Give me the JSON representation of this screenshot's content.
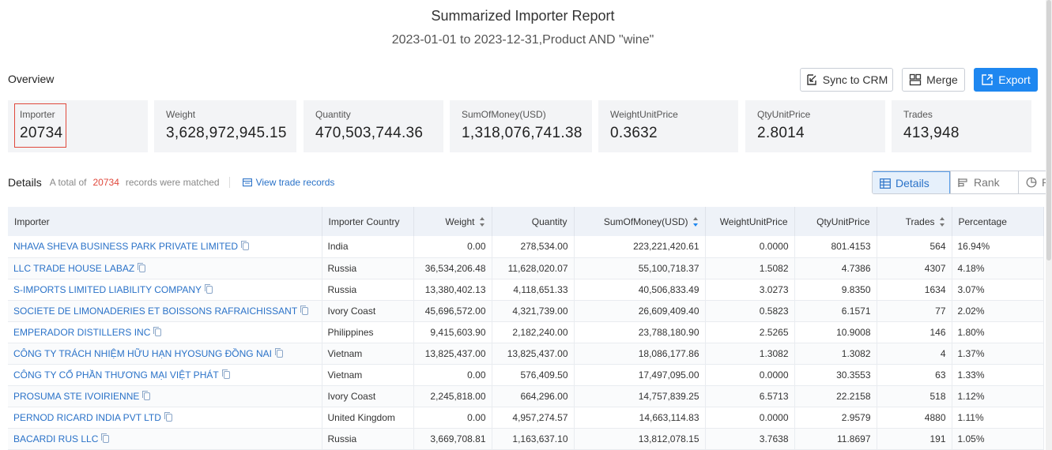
{
  "header": {
    "title": "Summarized Importer Report",
    "subtitle": "2023-01-01 to 2023-12-31,Product AND \"wine\""
  },
  "overview": {
    "label": "Overview",
    "buttons": {
      "sync": "Sync to CRM",
      "merge": "Merge",
      "export": "Export"
    },
    "stats": [
      {
        "label": "Importer",
        "value": "20734"
      },
      {
        "label": "Weight",
        "value": "3,628,972,945.15"
      },
      {
        "label": "Quantity",
        "value": "470,503,744.36"
      },
      {
        "label": "SumOfMoney(USD)",
        "value": "1,318,076,741.38"
      },
      {
        "label": "WeightUnitPrice",
        "value": "0.3632"
      },
      {
        "label": "QtyUnitPrice",
        "value": "2.8014"
      },
      {
        "label": "Trades",
        "value": "413,948"
      }
    ]
  },
  "details": {
    "title": "Details",
    "total_prefix": "A total of",
    "total_count": "20734",
    "total_suffix": "records were matched",
    "view_link": "View trade records",
    "views": {
      "details": "Details",
      "rank": "Rank",
      "ratio": "Ratio"
    }
  },
  "table": {
    "columns": [
      "Importer",
      "Importer Country",
      "Weight",
      "Quantity",
      "SumOfMoney(USD)",
      "WeightUnitPrice",
      "QtyUnitPrice",
      "Trades",
      "Percentage"
    ],
    "rows": [
      [
        "NHAVA SHEVA BUSINESS PARK PRIVATE LIMITED",
        "India",
        "0.00",
        "278,534.00",
        "223,221,420.61",
        "0.0000",
        "801.4153",
        "564",
        "16.94%"
      ],
      [
        "LLC TRADE HOUSE LABAZ",
        "Russia",
        "36,534,206.48",
        "11,628,020.07",
        "55,100,718.37",
        "1.5082",
        "4.7386",
        "4307",
        "4.18%"
      ],
      [
        "S-IMPORTS LIMITED LIABILITY COMPANY",
        "Russia",
        "13,380,402.13",
        "4,118,651.33",
        "40,506,833.49",
        "3.0273",
        "9.8350",
        "1634",
        "3.07%"
      ],
      [
        "SOCIETE DE LIMONADERIES ET BOISSONS RAFRAICHISSANT",
        "Ivory Coast",
        "45,696,572.00",
        "4,321,739.00",
        "26,609,409.40",
        "0.5823",
        "6.1571",
        "77",
        "2.02%"
      ],
      [
        "EMPERADOR DISTILLERS INC",
        "Philippines",
        "9,415,603.90",
        "2,182,240.00",
        "23,788,180.90",
        "2.5265",
        "10.9008",
        "146",
        "1.80%"
      ],
      [
        "CÔNG TY TRÁCH NHIỆM HỮU HẠN HYOSUNG ĐỒNG NAI",
        "Vietnam",
        "13,825,437.00",
        "13,825,437.00",
        "18,086,177.86",
        "1.3082",
        "1.3082",
        "4",
        "1.37%"
      ],
      [
        "CÔNG TY CỔ PHẦN THƯƠNG MẠI VIỆT PHÁT",
        "Vietnam",
        "0.00",
        "576,409.50",
        "17,497,095.00",
        "0.0000",
        "30.3553",
        "63",
        "1.33%"
      ],
      [
        "PROSUMA STE IVOIRIENNE",
        "Ivory Coast",
        "2,245,818.00",
        "664,296.00",
        "14,757,839.25",
        "6.5713",
        "22.2158",
        "518",
        "1.12%"
      ],
      [
        "PERNOD RICARD INDIA PVT LTD",
        "United Kingdom",
        "0.00",
        "4,957,274.57",
        "14,663,114.83",
        "0.0000",
        "2.9579",
        "4880",
        "1.11%"
      ],
      [
        "BACARDI RUS LLC",
        "Russia",
        "3,669,708.81",
        "1,163,637.10",
        "13,812,078.15",
        "3.7638",
        "11.8697",
        "191",
        "1.05%"
      ]
    ]
  },
  "colors": {
    "accent": "#1e87f0",
    "link": "#2a72c8",
    "highlight": "#e0483c",
    "header_bg": "#eef2f8",
    "card_bg": "#f3f4f6"
  }
}
